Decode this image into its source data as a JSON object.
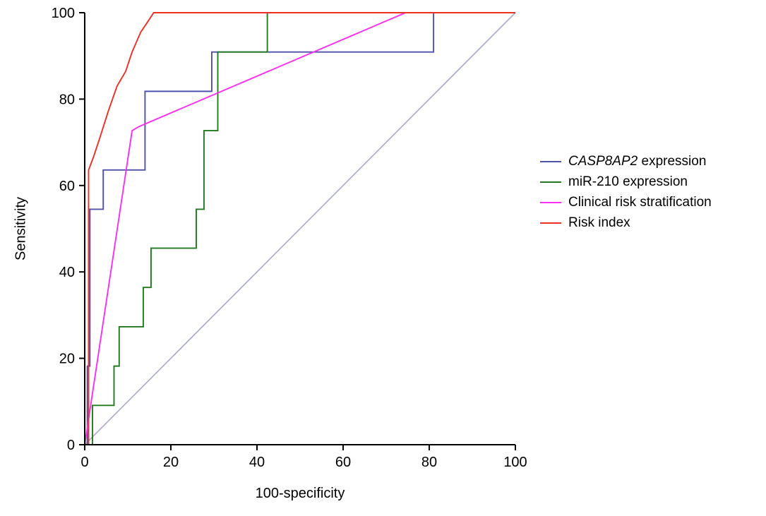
{
  "legend": {
    "items": [
      {
        "italic": "CASP8AP2",
        "text": " expression"
      },
      {
        "italic": "",
        "text": "miR-210 expression"
      },
      {
        "italic": "",
        "text": "Clinical risk stratification"
      },
      {
        "italic": "",
        "text": "Risk index"
      }
    ]
  },
  "chart_data": {
    "type": "line",
    "subtype": "roc-curve",
    "title": "",
    "xlabel": "100-specificity",
    "ylabel": "Sensitivity",
    "xlim": [
      0,
      100
    ],
    "ylim": [
      0,
      100
    ],
    "x_ticks": [
      0,
      20,
      40,
      60,
      80,
      100
    ],
    "y_ticks": [
      0,
      20,
      40,
      60,
      80,
      100
    ],
    "grid": false,
    "legend_position": "right-outside",
    "axis_color": "#000000",
    "reference_line": {
      "name": "diagonal reference",
      "color": "#a8aacb",
      "points": [
        [
          0,
          0
        ],
        [
          100,
          100
        ]
      ]
    },
    "series": [
      {
        "name": "CASP8AP2 expression",
        "color": "#4f51ad",
        "points": [
          [
            0,
            0
          ],
          [
            0.6,
            0
          ],
          [
            0.6,
            18.2
          ],
          [
            1.2,
            18.2
          ],
          [
            1.2,
            54.5
          ],
          [
            4.3,
            54.5
          ],
          [
            4.3,
            63.6
          ],
          [
            14,
            63.6
          ],
          [
            14,
            81.8
          ],
          [
            29.5,
            81.8
          ],
          [
            29.5,
            90.9
          ],
          [
            81,
            90.9
          ],
          [
            81,
            100
          ],
          [
            100,
            100
          ]
        ]
      },
      {
        "name": "miR-210 expression",
        "color": "#217a21",
        "points": [
          [
            0,
            0
          ],
          [
            1.8,
            0
          ],
          [
            1.8,
            9.1
          ],
          [
            6.8,
            9.1
          ],
          [
            6.8,
            18.2
          ],
          [
            8,
            18.2
          ],
          [
            8,
            27.3
          ],
          [
            13.6,
            27.3
          ],
          [
            13.6,
            36.4
          ],
          [
            15.4,
            36.4
          ],
          [
            15.4,
            45.5
          ],
          [
            25.9,
            45.5
          ],
          [
            25.9,
            54.5
          ],
          [
            27.7,
            54.5
          ],
          [
            27.7,
            72.7
          ],
          [
            30.9,
            72.7
          ],
          [
            30.9,
            90.9
          ],
          [
            42.4,
            90.9
          ],
          [
            42.4,
            100
          ],
          [
            100,
            100
          ]
        ]
      },
      {
        "name": "Clinical risk stratification",
        "color": "#fb2ff2",
        "points": [
          [
            0,
            0
          ],
          [
            11,
            72.7
          ],
          [
            12.5,
            73.6
          ],
          [
            74.5,
            100
          ],
          [
            100,
            100
          ]
        ]
      },
      {
        "name": "Risk index",
        "color": "#ee3124",
        "points": [
          [
            0,
            0
          ],
          [
            0.9,
            0
          ],
          [
            0.9,
            63.6
          ],
          [
            2,
            66.5
          ],
          [
            3.5,
            71
          ],
          [
            5.5,
            77.3
          ],
          [
            7.5,
            83
          ],
          [
            9.5,
            86.4
          ],
          [
            11,
            90.9
          ],
          [
            13,
            95.5
          ],
          [
            14.5,
            97.7
          ],
          [
            16,
            100
          ],
          [
            100,
            100
          ]
        ]
      }
    ]
  }
}
